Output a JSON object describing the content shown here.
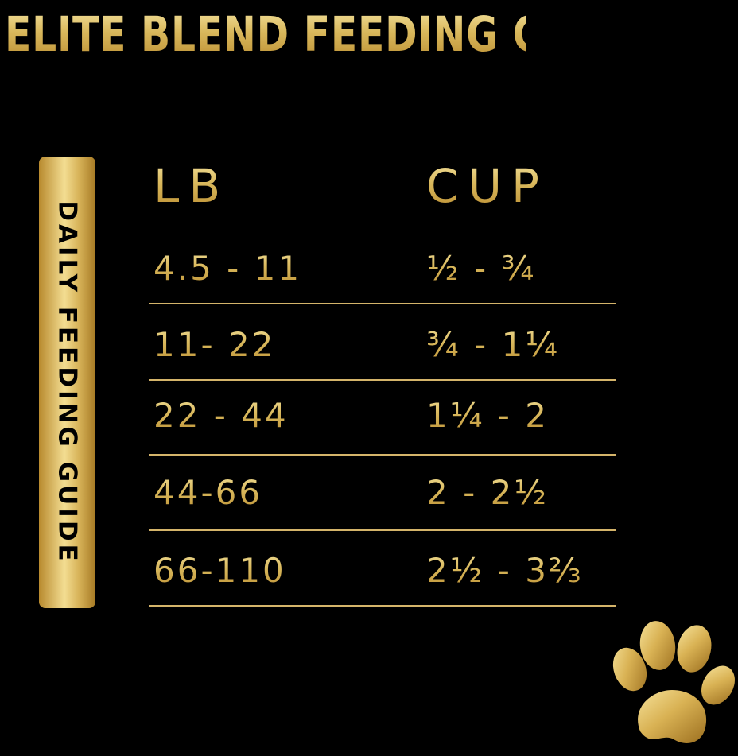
{
  "title": "ELITE BLEND FEEDING GUIDE",
  "side_label": "DAILY FEEDING GUIDE",
  "columns": {
    "lb": "LB",
    "cup": "CUP"
  },
  "rows": [
    {
      "lb": "4.5 - 11",
      "cup": "½ - ¾"
    },
    {
      "lb": "11- 22",
      "cup": "¾ - 1¼"
    },
    {
      "lb": "22 - 44",
      "cup": "1¼ - 2"
    },
    {
      "lb": "44-66",
      "cup": "2 - 2½"
    },
    {
      "lb": "66-110",
      "cup": "2½ - 3⅔"
    }
  ],
  "colors": {
    "background": "#000000",
    "gold": "#e3c77b",
    "gold_dark": "#b88a2e"
  },
  "icons": {
    "paw": "paw-print-icon"
  }
}
